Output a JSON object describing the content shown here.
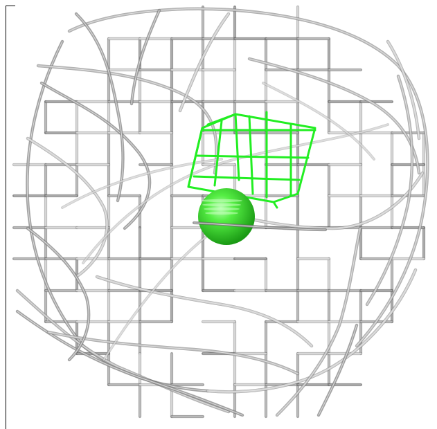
{
  "scene": {
    "background": "#ffffff",
    "mesh_color": "#9a9a9a",
    "mesh_highlight": "#e6e6e6",
    "mesh_shadow": "#555555",
    "selection_color": "#22ee22",
    "sphere_color": "#33dd33"
  }
}
